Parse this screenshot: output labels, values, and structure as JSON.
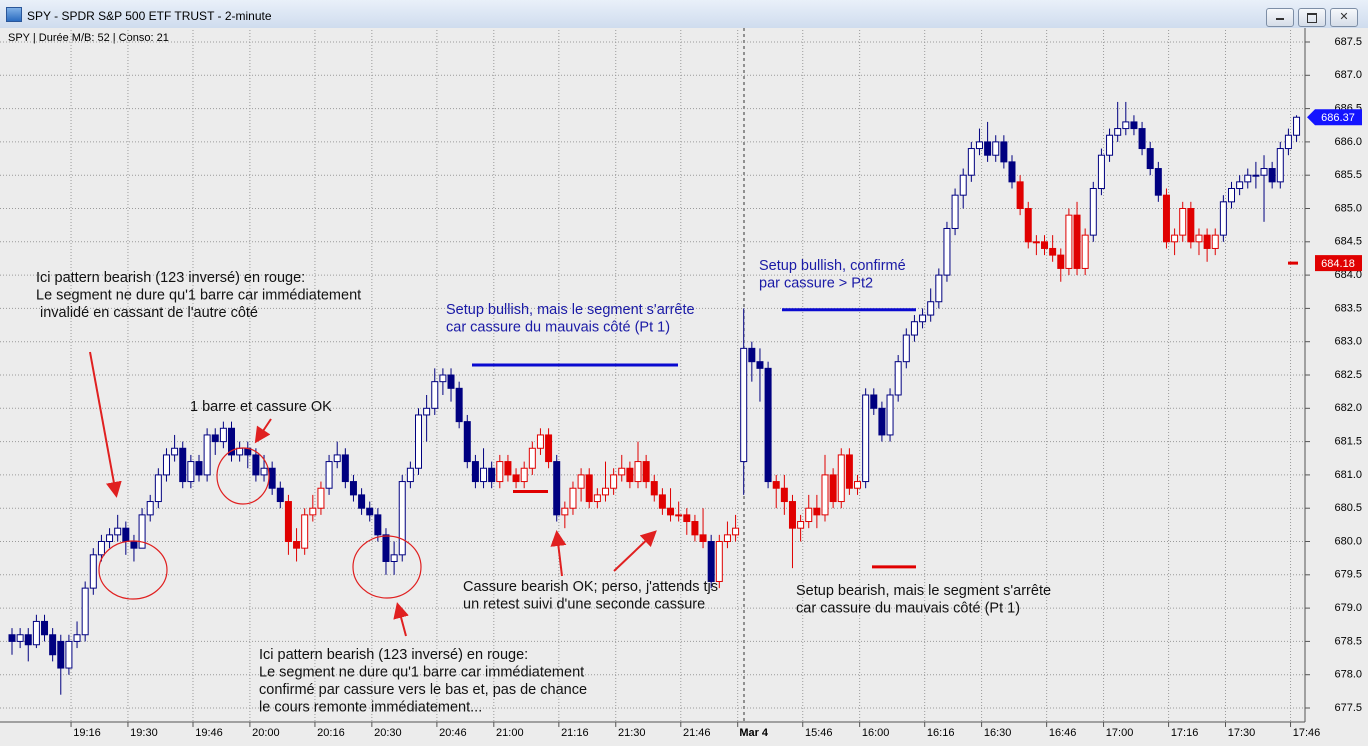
{
  "chart_data": {
    "type": "candlestick",
    "title": "SPY - SPDR S&P 500 ETF TRUST - 2-minute",
    "subtitle": "SPY | Durée M/B: 52 | Conso: 21",
    "categories": [
      null,
      null,
      null,
      null,
      null,
      null,
      null,
      null,
      "19:16",
      null,
      null,
      null,
      null,
      null,
      null,
      "19:30",
      null,
      null,
      null,
      null,
      null,
      null,
      null,
      "19:46",
      null,
      null,
      null,
      null,
      null,
      null,
      "20:00",
      null,
      null,
      null,
      null,
      null,
      null,
      null,
      "20:16",
      null,
      null,
      null,
      null,
      null,
      null,
      "20:30",
      null,
      null,
      null,
      null,
      null,
      null,
      null,
      "20:46",
      null,
      null,
      null,
      null,
      null,
      null,
      "21:00",
      null,
      null,
      null,
      null,
      null,
      null,
      null,
      "21:16",
      null,
      null,
      null,
      null,
      null,
      null,
      "21:30",
      null,
      null,
      null,
      null,
      null,
      null,
      null,
      "21:46",
      null,
      null,
      null,
      null,
      null,
      null,
      "Mar 4",
      null,
      null,
      null,
      null,
      null,
      null,
      null,
      "15:46",
      null,
      null,
      null,
      null,
      null,
      null,
      "16:00",
      null,
      null,
      null,
      null,
      null,
      null,
      null,
      "16:16",
      null,
      null,
      null,
      null,
      null,
      null,
      "16:30",
      null,
      null,
      null,
      null,
      null,
      null,
      null,
      "16:46",
      null,
      null,
      null,
      null,
      null,
      null,
      "17:00",
      null,
      null,
      null,
      null,
      null,
      null,
      null,
      "17:16",
      null,
      null,
      null,
      null,
      null,
      null,
      "17:30",
      null,
      null,
      null,
      null,
      null,
      null,
      null,
      "17:46"
    ],
    "open": [
      678.6,
      678.5,
      678.6,
      678.45,
      678.8,
      678.6,
      678.5,
      678.1,
      678.5,
      678.6,
      679.3,
      679.8,
      680.0,
      680.1,
      680.2,
      680.0,
      679.9,
      680.4,
      680.6,
      681.0,
      681.3,
      681.4,
      680.9,
      681.2,
      681.0,
      681.6,
      681.5,
      681.7,
      681.3,
      681.4,
      681.3,
      681.0,
      681.1,
      680.8,
      680.6,
      680.0,
      679.9,
      680.4,
      680.5,
      680.8,
      681.2,
      681.3,
      680.9,
      680.7,
      680.5,
      680.4,
      680.1,
      679.7,
      679.8,
      680.9,
      681.1,
      681.9,
      682.0,
      682.4,
      682.5,
      682.3,
      681.8,
      681.2,
      680.9,
      681.1,
      680.9,
      681.2,
      681.0,
      680.9,
      681.1,
      681.4,
      681.6,
      681.2,
      680.4,
      680.5,
      680.8,
      681.0,
      680.6,
      680.7,
      680.8,
      681.0,
      681.1,
      680.9,
      681.2,
      680.9,
      680.7,
      680.5,
      680.4,
      680.4,
      680.3,
      680.1,
      680.0,
      679.4,
      680.0,
      680.1,
      681.2,
      682.9,
      682.7,
      682.6,
      680.9,
      680.8,
      680.6,
      680.2,
      680.3,
      680.5,
      680.4,
      681.0,
      680.6,
      681.3,
      680.8,
      680.9,
      682.2,
      682.0,
      681.6,
      682.2,
      682.7,
      683.1,
      683.3,
      683.4,
      683.6,
      684.0,
      684.7,
      685.2,
      685.5,
      685.9,
      686.0,
      685.8,
      686.0,
      685.7,
      685.4,
      685.0,
      684.5,
      684.5,
      684.4,
      684.3,
      684.1,
      684.9,
      684.1,
      684.6,
      685.3,
      685.8,
      686.1,
      686.2,
      686.3,
      686.2,
      685.9,
      685.6,
      685.2,
      684.5,
      684.6,
      685.0,
      684.5,
      684.6,
      684.4,
      684.6,
      685.1,
      685.3,
      685.4,
      685.5,
      685.5,
      685.6,
      685.4,
      685.9,
      686.1
    ],
    "high": [
      678.7,
      678.7,
      678.7,
      678.9,
      678.9,
      678.7,
      678.6,
      678.6,
      678.8,
      679.4,
      679.9,
      680.1,
      680.2,
      680.4,
      680.3,
      680.1,
      680.5,
      680.7,
      681.1,
      681.4,
      681.6,
      681.5,
      681.3,
      681.3,
      681.7,
      681.7,
      681.8,
      681.8,
      681.5,
      681.5,
      681.4,
      681.3,
      681.2,
      680.9,
      680.7,
      680.2,
      680.5,
      680.7,
      680.9,
      681.3,
      681.5,
      681.4,
      681.0,
      680.8,
      680.6,
      680.5,
      680.2,
      680.0,
      681.0,
      681.2,
      682.0,
      682.2,
      682.6,
      682.6,
      682.6,
      682.4,
      681.9,
      681.3,
      681.4,
      681.2,
      681.3,
      681.3,
      681.1,
      681.2,
      681.5,
      681.7,
      681.7,
      681.3,
      680.6,
      680.9,
      681.1,
      681.1,
      680.8,
      681.2,
      681.1,
      681.3,
      681.2,
      681.5,
      681.3,
      681.0,
      680.8,
      680.8,
      680.6,
      680.5,
      680.4,
      680.5,
      680.1,
      680.1,
      680.3,
      680.4,
      683.5,
      683.0,
      682.9,
      682.7,
      681.0,
      681.0,
      680.7,
      680.4,
      680.7,
      680.7,
      681.3,
      681.1,
      681.4,
      681.4,
      681.0,
      682.3,
      682.3,
      682.1,
      682.3,
      682.8,
      683.2,
      683.4,
      683.5,
      683.8,
      684.1,
      684.8,
      685.3,
      685.6,
      686.0,
      686.2,
      686.3,
      686.1,
      686.1,
      685.8,
      685.5,
      685.1,
      684.6,
      684.6,
      684.6,
      684.4,
      685.0,
      685.1,
      684.7,
      685.4,
      685.9,
      686.2,
      686.6,
      686.6,
      686.4,
      686.3,
      686.0,
      685.7,
      685.3,
      684.7,
      685.1,
      685.1,
      684.7,
      684.7,
      684.7,
      685.2,
      685.4,
      685.5,
      685.6,
      685.7,
      685.8,
      685.7,
      686.0,
      686.2,
      686.4
    ],
    "low": [
      678.3,
      678.4,
      678.2,
      678.4,
      678.5,
      678.2,
      677.7,
      678.0,
      678.4,
      678.5,
      679.2,
      679.7,
      679.9,
      680.0,
      679.8,
      679.7,
      679.9,
      680.3,
      680.5,
      680.9,
      681.2,
      680.8,
      680.8,
      680.9,
      680.9,
      681.3,
      681.4,
      681.2,
      681.2,
      681.1,
      680.9,
      680.9,
      680.7,
      680.5,
      679.8,
      679.7,
      679.8,
      680.3,
      680.4,
      680.7,
      681.1,
      680.8,
      680.6,
      680.4,
      680.3,
      680.0,
      679.5,
      679.5,
      679.7,
      680.8,
      681.0,
      681.5,
      681.9,
      682.2,
      682.1,
      681.7,
      681.1,
      680.8,
      680.8,
      680.8,
      680.8,
      680.9,
      680.8,
      680.8,
      681.0,
      681.3,
      681.1,
      680.3,
      680.2,
      680.4,
      680.6,
      680.5,
      680.5,
      680.6,
      680.7,
      680.9,
      680.8,
      680.8,
      680.8,
      680.6,
      680.4,
      680.3,
      680.3,
      680.1,
      680.0,
      679.9,
      679.3,
      679.3,
      679.9,
      680.0,
      680.7,
      682.4,
      682.1,
      680.8,
      680.5,
      680.4,
      679.6,
      680.0,
      680.2,
      680.2,
      680.3,
      680.5,
      680.5,
      680.7,
      680.7,
      680.8,
      681.9,
      681.5,
      681.5,
      682.1,
      682.6,
      683.0,
      683.2,
      683.3,
      683.5,
      683.9,
      684.6,
      685.0,
      685.4,
      685.8,
      685.7,
      685.7,
      685.6,
      685.3,
      684.9,
      684.4,
      684.3,
      684.3,
      684.2,
      683.9,
      684.0,
      684.0,
      684.0,
      684.5,
      685.2,
      685.7,
      686.0,
      686.1,
      686.1,
      685.8,
      685.5,
      685.1,
      684.4,
      684.3,
      684.5,
      684.4,
      684.3,
      684.2,
      684.3,
      684.5,
      685.0,
      685.2,
      685.3,
      685.3,
      684.8,
      685.3,
      685.3,
      685.8,
      686.0
    ],
    "close": [
      678.5,
      678.6,
      678.45,
      678.8,
      678.6,
      678.3,
      678.1,
      678.5,
      678.6,
      679.3,
      679.8,
      680.0,
      680.1,
      680.2,
      680.0,
      679.9,
      680.4,
      680.6,
      681.0,
      681.3,
      681.4,
      680.9,
      681.2,
      681.0,
      681.6,
      681.5,
      681.7,
      681.3,
      681.4,
      681.3,
      681.0,
      681.1,
      680.8,
      680.6,
      680.0,
      679.9,
      680.4,
      680.5,
      680.8,
      681.2,
      681.3,
      680.9,
      680.7,
      680.5,
      680.4,
      680.1,
      679.7,
      679.8,
      680.9,
      681.1,
      681.9,
      682.0,
      682.4,
      682.5,
      682.3,
      681.8,
      681.2,
      680.9,
      681.1,
      680.9,
      681.2,
      681.0,
      680.9,
      681.1,
      681.4,
      681.6,
      681.2,
      680.4,
      680.5,
      680.8,
      681.0,
      680.6,
      680.7,
      680.8,
      681.0,
      681.1,
      680.9,
      681.2,
      680.9,
      680.7,
      680.5,
      680.4,
      680.4,
      680.3,
      680.1,
      680.0,
      679.4,
      680.0,
      680.1,
      680.2,
      682.9,
      682.7,
      682.6,
      680.9,
      680.8,
      680.6,
      680.2,
      680.3,
      680.5,
      680.4,
      681.0,
      680.6,
      681.3,
      680.8,
      680.9,
      682.2,
      682.0,
      681.6,
      682.2,
      682.7,
      683.1,
      683.3,
      683.4,
      683.6,
      684.0,
      684.7,
      685.2,
      685.5,
      685.9,
      686.0,
      685.8,
      686.0,
      685.7,
      685.4,
      685.0,
      684.5,
      684.5,
      684.4,
      684.3,
      684.1,
      684.9,
      684.1,
      684.6,
      685.3,
      685.8,
      686.1,
      686.2,
      686.3,
      686.2,
      685.9,
      685.6,
      685.2,
      684.5,
      684.6,
      685.0,
      684.5,
      684.6,
      684.4,
      684.6,
      685.1,
      685.3,
      685.4,
      685.5,
      685.5,
      685.6,
      685.4,
      685.9,
      686.1,
      686.37
    ],
    "colors": [
      "#000080",
      "#000080",
      "#000080",
      "#000080",
      "#000080",
      "#000080",
      "#000080",
      "#000080",
      "#000080",
      "#000080",
      "#000080",
      "#000080",
      "#000080",
      "#000080",
      "#000080",
      "#000080",
      "#000080",
      "#000080",
      "#000080",
      "#000080",
      "#000080",
      "#000080",
      "#000080",
      "#000080",
      "#000080",
      "#000080",
      "#000080",
      "#000080",
      "#000080",
      "#000080",
      "#000080",
      "#000080",
      "#000080",
      "#000080",
      "#e00000",
      "#e00000",
      "#e00000",
      "#e00000",
      "#e00000",
      "#000080",
      "#000080",
      "#000080",
      "#000080",
      "#000080",
      "#000080",
      "#000080",
      "#000080",
      "#000080",
      "#000080",
      "#000080",
      "#000080",
      "#000080",
      "#000080",
      "#000080",
      "#000080",
      "#000080",
      "#000080",
      "#000080",
      "#000080",
      "#000080",
      "#e00000",
      "#e00000",
      "#e00000",
      "#e00000",
      "#e00000",
      "#e00000",
      "#e00000",
      "#000080",
      "#e00000",
      "#e00000",
      "#e00000",
      "#e00000",
      "#e00000",
      "#e00000",
      "#e00000",
      "#e00000",
      "#e00000",
      "#e00000",
      "#e00000",
      "#e00000",
      "#e00000",
      "#e00000",
      "#e00000",
      "#e00000",
      "#e00000",
      "#e00000",
      "#000080",
      "#e00000",
      "#e00000",
      "#e00000",
      "#000080",
      "#000080",
      "#000080",
      "#000080",
      "#e00000",
      "#e00000",
      "#e00000",
      "#e00000",
      "#e00000",
      "#e00000",
      "#e00000",
      "#e00000",
      "#e00000",
      "#e00000",
      "#e00000",
      "#000080",
      "#000080",
      "#000080",
      "#000080",
      "#000080",
      "#000080",
      "#000080",
      "#000080",
      "#000080",
      "#000080",
      "#000080",
      "#000080",
      "#000080",
      "#000080",
      "#000080",
      "#000080",
      "#000080",
      "#000080",
      "#000080",
      "#e00000",
      "#e00000",
      "#e00000",
      "#e00000",
      "#e00000",
      "#e00000",
      "#e00000",
      "#e00000",
      "#e00000",
      "#000080",
      "#000080",
      "#000080",
      "#000080",
      "#000080",
      "#000080",
      "#000080",
      "#000080",
      "#000080",
      "#e00000",
      "#e00000",
      "#e00000",
      "#e00000",
      "#e00000",
      "#e00000",
      "#e00000",
      "#000080",
      "#000080",
      "#000080",
      "#000080",
      "#000080",
      "#000080",
      "#000080",
      "#000080",
      "#000080",
      "#000080"
    ],
    "ylim": [
      677.29,
      687.68
    ],
    "yticks": [
      677.5,
      {
        "value": 678,
        "label": "678.0"
      },
      678.5,
      {
        "value": 679,
        "label": "679.0"
      },
      679.5,
      {
        "value": 680,
        "label": "680.0"
      },
      680.5,
      {
        "value": 681,
        "label": "681.0"
      },
      681.5,
      {
        "value": 682,
        "label": "682.0"
      },
      682.5,
      {
        "value": 683,
        "label": "683.0"
      },
      683.5,
      {
        "value": 684,
        "label": "684.0"
      },
      684.5,
      {
        "value": 685,
        "label": "685.0"
      },
      685.5,
      {
        "value": 686,
        "label": "686.0"
      },
      686.5,
      {
        "value": 687,
        "label": "687.0"
      },
      687.5
    ],
    "grid": true,
    "levels": [
      {
        "value": 682.65,
        "color": "#0a0ad0"
      },
      {
        "value": 683.48,
        "color": "#0a0ad0"
      },
      {
        "value": 680.75,
        "color": "#e00000"
      },
      {
        "value": 679.62,
        "color": "#e00000"
      }
    ],
    "price_tags": [
      {
        "value": 686.37,
        "color": "#1414ff"
      },
      {
        "value": 684.18,
        "color": "#e00000"
      }
    ],
    "annotations": [
      {
        "lines": [
          "Ici pattern bearish (123 inversé) en rouge:",
          "Le segment ne dure qu'1 barre car immédiatement",
          "invalidé en cassant de l'autre côté"
        ],
        "color": "#111111"
      },
      {
        "lines": [
          "1 barre et cassure OK"
        ],
        "color": "#111111"
      },
      {
        "lines": [
          "Setup bullish, mais le segment s'arrête",
          "car cassure du mauvais côté (Pt 1)"
        ],
        "color": "#1a1aa6"
      },
      {
        "lines": [
          "Setup bullish, confirmé",
          "par cassure > Pt2"
        ],
        "color": "#1a1aa6"
      },
      {
        "lines": [
          "Cassure bearish OK; perso, j'attends tjs",
          "un retest suivi d'une seconde cassure"
        ],
        "color": "#111111"
      },
      {
        "lines": [
          "Setup bearish, mais le segment s'arrête",
          "car cassure du mauvais côté (Pt 1)"
        ],
        "color": "#111111"
      },
      {
        "lines": [
          "Ici pattern bearish (123 inversé) en rouge:",
          "Le segment ne dure qu'1 barre car immédiatement",
          "confirmé par cassure vers le bas et, pas de chance",
          "le cours remonte immédiatement..."
        ],
        "color": "#111111"
      }
    ]
  }
}
